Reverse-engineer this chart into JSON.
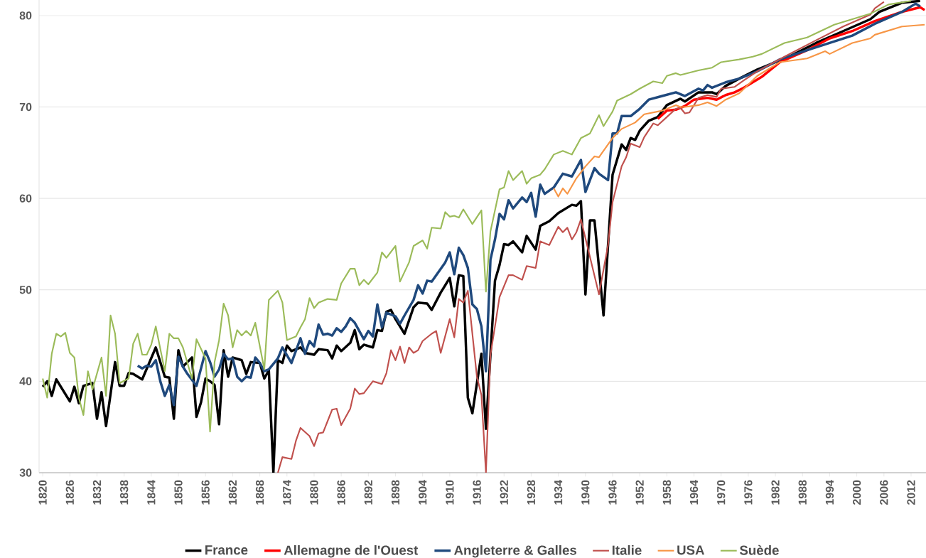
{
  "chart_data": {
    "type": "line",
    "xlim": [
      1819.2,
      2015.3
    ],
    "ylim": [
      30,
      81.7
    ],
    "xticks": [
      1820,
      1826,
      1832,
      1838,
      1844,
      1850,
      1856,
      1862,
      1868,
      1874,
      1880,
      1886,
      1892,
      1898,
      1904,
      1910,
      1916,
      1922,
      1928,
      1934,
      1940,
      1946,
      1952,
      1958,
      1964,
      1970,
      1976,
      1982,
      1988,
      1994,
      2000,
      2006,
      2012
    ],
    "yticks": [
      30,
      40,
      50,
      60,
      70,
      80
    ],
    "grid": "y",
    "legend": "bottom",
    "series": [
      {
        "name": "France",
        "color": "#000000",
        "x": [
          1820,
          1821,
          1822,
          1823,
          1826,
          1827,
          1828,
          1829,
          1831,
          1832,
          1833,
          1834,
          1836,
          1837,
          1838,
          1839,
          1840,
          1842,
          1845,
          1847,
          1848,
          1849,
          1850,
          1851,
          1853,
          1854,
          1855,
          1856,
          1857,
          1858,
          1859,
          1860,
          1861,
          1862,
          1864,
          1865,
          1866,
          1868,
          1869,
          1870,
          1871,
          1872,
          1873,
          1874,
          1875,
          1877,
          1878,
          1880,
          1881,
          1883,
          1884,
          1885,
          1886,
          1888,
          1889,
          1890,
          1891,
          1893,
          1894,
          1895,
          1896,
          1897,
          1898,
          1900,
          1902,
          1903,
          1905,
          1906,
          1908,
          1910,
          1911,
          1912,
          1913,
          1914,
          1915,
          1917,
          1918,
          1920,
          1921,
          1922,
          1923,
          1924,
          1926,
          1927,
          1929,
          1930,
          1932,
          1934,
          1937,
          1938,
          1939,
          1940,
          1941,
          1942,
          1944,
          1946,
          1948,
          1949,
          1950,
          1951,
          1952,
          1954,
          1956,
          1958,
          1961,
          1962,
          1965,
          1968,
          1969,
          1971,
          1974,
          1978,
          1985,
          1991,
          1997,
          2003,
          2005,
          2010,
          2014
        ],
        "values": [
          39.4,
          40.0,
          38.4,
          40.2,
          37.8,
          39.4,
          37.6,
          39.5,
          39.8,
          35.9,
          38.8,
          35.1,
          42.1,
          39.5,
          39.5,
          40.9,
          40.8,
          40.2,
          43.7,
          40.5,
          40.4,
          35.9,
          43.4,
          41.6,
          42.6,
          36.1,
          37.7,
          40.3,
          40.0,
          39.6,
          35.3,
          43.4,
          40.5,
          42.6,
          42.3,
          40.8,
          42.1,
          42.0,
          40.3,
          41.2,
          30.0,
          42.3,
          42.0,
          43.9,
          43.3,
          43.7,
          43.1,
          42.9,
          43.5,
          43.4,
          42.5,
          43.9,
          43.3,
          44.2,
          45.6,
          43.5,
          44.0,
          43.7,
          45.6,
          45.5,
          47.6,
          47.8,
          46.8,
          45.2,
          48.1,
          48.6,
          48.5,
          47.8,
          49.7,
          51.3,
          48.2,
          51.6,
          51.5,
          38.2,
          36.5,
          43.0,
          34.8,
          51.0,
          52.7,
          55.0,
          54.9,
          55.3,
          54.1,
          55.9,
          54.4,
          57.0,
          57.5,
          58.4,
          59.3,
          59.2,
          59.7,
          49.5,
          57.6,
          57.6,
          47.2,
          62.6,
          65.9,
          65.3,
          66.6,
          66.4,
          67.4,
          68.5,
          68.9,
          70.2,
          70.9,
          70.6,
          71.6,
          71.6,
          71.4,
          72.3,
          73.1,
          74.1,
          75.5,
          77.0,
          78.3,
          79.6,
          80.4,
          81.4,
          81.6
        ]
      },
      {
        "name": "Allemagne de l'Ouest",
        "color": "#ff0000",
        "x": [
          1956,
          1958,
          1960,
          1962,
          1964,
          1967,
          1969,
          1971,
          1973,
          1975,
          1977,
          1979,
          1983,
          1989,
          1994,
          1999,
          2004,
          2010,
          2014,
          2015
        ],
        "values": [
          68.7,
          69.6,
          69.7,
          70.1,
          70.8,
          71.0,
          70.8,
          71.3,
          71.6,
          72.1,
          72.7,
          73.3,
          74.9,
          76.2,
          77.5,
          78.3,
          79.4,
          80.4,
          80.9,
          80.6
        ]
      },
      {
        "name": "Angleterre & Galles",
        "color": "#1f497d",
        "x": [
          1841,
          1842,
          1843,
          1844,
          1845,
          1846,
          1847,
          1848,
          1849,
          1850,
          1851,
          1852,
          1854,
          1855,
          1856,
          1857,
          1858,
          1859,
          1860,
          1861,
          1862,
          1863,
          1864,
          1865,
          1866,
          1867,
          1868,
          1869,
          1870,
          1872,
          1873,
          1875,
          1877,
          1878,
          1879,
          1880,
          1881,
          1882,
          1883,
          1884,
          1885,
          1886,
          1887,
          1888,
          1889,
          1891,
          1892,
          1893,
          1894,
          1895,
          1896,
          1898,
          1899,
          1900,
          1902,
          1903,
          1904,
          1905,
          1906,
          1907,
          1908,
          1909,
          1910,
          1911,
          1912,
          1913,
          1914,
          1915,
          1916,
          1917,
          1918,
          1919,
          1920,
          1921,
          1922,
          1923,
          1924,
          1926,
          1927,
          1928,
          1929,
          1930,
          1931,
          1933,
          1935,
          1937,
          1939,
          1940,
          1942,
          1943,
          1945,
          1946,
          1947,
          1948,
          1950,
          1952,
          1954,
          1957,
          1960,
          1962,
          1965,
          1966,
          1967,
          1968,
          1971,
          1974,
          1978,
          1983,
          1989,
          1994,
          1999,
          2004,
          2010,
          2013,
          2014
        ],
        "values": [
          41.7,
          41.4,
          41.7,
          41.6,
          42.3,
          40.0,
          38.4,
          39.6,
          37.4,
          42.7,
          41.6,
          40.8,
          39.5,
          41.4,
          43.3,
          42.1,
          40.5,
          41.3,
          43.0,
          42.4,
          42.5,
          40.5,
          40.0,
          40.5,
          40.4,
          42.6,
          42.0,
          41.1,
          41.3,
          42.5,
          43.7,
          42.0,
          44.7,
          43.0,
          44.4,
          43.8,
          46.2,
          45.1,
          45.2,
          45.0,
          45.8,
          45.4,
          46.0,
          46.9,
          46.4,
          44.6,
          45.5,
          44.9,
          48.4,
          45.9,
          47.5,
          47.1,
          46.3,
          47.2,
          48.9,
          50.5,
          49.6,
          51.0,
          50.9,
          51.6,
          52.3,
          53.0,
          54.1,
          51.7,
          54.6,
          53.8,
          52.4,
          48.4,
          47.9,
          46.0,
          41.1,
          53.3,
          55.5,
          58.3,
          57.7,
          59.8,
          58.9,
          60.1,
          59.6,
          60.6,
          58.0,
          61.5,
          60.5,
          61.2,
          62.7,
          62.4,
          64.2,
          60.7,
          63.3,
          62.7,
          62.0,
          67.1,
          67.1,
          69.0,
          69.0,
          69.8,
          70.8,
          71.2,
          71.6,
          71.2,
          72.0,
          71.8,
          72.4,
          72.1,
          72.7,
          73.1,
          73.9,
          75.2,
          76.2,
          77.0,
          77.8,
          79.1,
          80.4,
          81.3,
          81.0
        ]
      },
      {
        "name": "Italie",
        "color": "#c0504d",
        "x": [
          1872,
          1873,
          1875,
          1876,
          1877,
          1879,
          1880,
          1881,
          1882,
          1884,
          1885,
          1886,
          1888,
          1889,
          1890,
          1891,
          1893,
          1895,
          1896,
          1897,
          1898,
          1899,
          1900,
          1901,
          1902,
          1903,
          1904,
          1906,
          1907,
          1908,
          1910,
          1911,
          1912,
          1913,
          1914,
          1916,
          1917,
          1918,
          1919,
          1920,
          1921,
          1923,
          1924,
          1926,
          1927,
          1929,
          1930,
          1932,
          1934,
          1935,
          1936,
          1937,
          1938,
          1939,
          1943,
          1945,
          1946,
          1948,
          1949,
          1950,
          1952,
          1953,
          1955,
          1956,
          1958,
          1960,
          1961,
          1962,
          1963,
          1965,
          1967,
          1969,
          1970,
          1973,
          1975,
          1978,
          1984,
          1991,
          1997,
          2003,
          2004,
          2006
        ],
        "values": [
          30.0,
          31.7,
          31.5,
          33.5,
          34.9,
          34.0,
          32.9,
          34.3,
          34.4,
          36.9,
          37.0,
          35.2,
          37.0,
          39.2,
          38.6,
          38.7,
          40.0,
          39.7,
          40.9,
          43.4,
          42.3,
          43.8,
          42.0,
          43.7,
          43.1,
          43.4,
          44.4,
          45.2,
          45.5,
          43.1,
          46.8,
          44.8,
          49.0,
          48.6,
          49.9,
          40.5,
          38.5,
          30.0,
          42.9,
          46.0,
          49.2,
          51.6,
          51.6,
          51.1,
          52.6,
          52.4,
          55.3,
          54.9,
          56.9,
          56.3,
          56.8,
          55.5,
          56.3,
          57.7,
          49.5,
          54.9,
          59.6,
          63.5,
          64.5,
          66.0,
          65.6,
          66.7,
          68.2,
          68.0,
          68.9,
          69.8,
          69.9,
          69.3,
          69.4,
          71.0,
          71.3,
          71.1,
          72.0,
          72.2,
          72.9,
          73.9,
          75.5,
          77.3,
          78.8,
          80.1,
          80.8,
          81.5
        ]
      },
      {
        "name": "USA",
        "color": "#f79646",
        "x": [
          1933,
          1934,
          1935,
          1936,
          1938,
          1940,
          1942,
          1943,
          1946,
          1948,
          1951,
          1953,
          1957,
          1960,
          1961,
          1962,
          1965,
          1967,
          1969,
          1971,
          1974,
          1978,
          1983,
          1989,
          1993,
          1994,
          1999,
          2003,
          2004,
          2010,
          2015
        ],
        "values": [
          61.1,
          60.2,
          61.1,
          60.5,
          62.2,
          63.5,
          64.6,
          64.5,
          66.6,
          67.6,
          68.3,
          69.2,
          69.6,
          70.2,
          70.0,
          70.0,
          70.2,
          70.5,
          70.1,
          70.8,
          71.5,
          73.4,
          74.9,
          75.3,
          76.1,
          75.8,
          77.0,
          77.5,
          77.9,
          78.8,
          79.0
        ]
      },
      {
        "name": "Suède",
        "color": "#9bbb59",
        "x": [
          1820,
          1821,
          1822,
          1823,
          1824,
          1825,
          1826,
          1827,
          1828,
          1829,
          1830,
          1831,
          1833,
          1834,
          1835,
          1836,
          1837,
          1839,
          1840,
          1841,
          1842,
          1843,
          1844,
          1845,
          1847,
          1848,
          1849,
          1850,
          1851,
          1853,
          1854,
          1856,
          1857,
          1858,
          1859,
          1860,
          1861,
          1862,
          1863,
          1864,
          1865,
          1866,
          1867,
          1869,
          1870,
          1872,
          1873,
          1874,
          1876,
          1877,
          1878,
          1879,
          1880,
          1881,
          1883,
          1885,
          1886,
          1888,
          1889,
          1890,
          1891,
          1892,
          1894,
          1895,
          1896,
          1898,
          1899,
          1901,
          1902,
          1904,
          1905,
          1906,
          1908,
          1909,
          1910,
          1911,
          1912,
          1913,
          1915,
          1917,
          1918,
          1919,
          1921,
          1922,
          1923,
          1924,
          1926,
          1927,
          1928,
          1930,
          1931,
          1933,
          1935,
          1937,
          1939,
          1941,
          1943,
          1944,
          1946,
          1947,
          1950,
          1952,
          1955,
          1957,
          1958,
          1960,
          1961,
          1965,
          1968,
          1970,
          1974,
          1977,
          1979,
          1984,
          1989,
          1992,
          1995,
          1999,
          2003,
          2007,
          2012
        ],
        "values": [
          40.3,
          38.2,
          43.0,
          45.2,
          44.9,
          45.3,
          43.1,
          42.6,
          38.2,
          36.3,
          41.1,
          39.1,
          42.6,
          38.4,
          47.2,
          45.2,
          39.8,
          40.3,
          44.1,
          45.2,
          42.9,
          42.9,
          44.0,
          46.0,
          41.1,
          45.2,
          44.7,
          44.7,
          43.7,
          40.3,
          44.6,
          42.5,
          34.5,
          42.1,
          44.5,
          48.5,
          47.2,
          43.7,
          45.6,
          45.0,
          45.5,
          45.0,
          46.4,
          41.3,
          48.9,
          49.9,
          48.6,
          44.5,
          44.9,
          45.9,
          46.8,
          49.1,
          48.0,
          48.6,
          49.0,
          48.9,
          50.7,
          52.3,
          52.3,
          50.5,
          51.1,
          50.6,
          51.9,
          54.1,
          53.5,
          54.8,
          50.9,
          53.0,
          54.8,
          55.4,
          54.5,
          56.8,
          56.7,
          58.5,
          58.0,
          58.1,
          57.9,
          58.8,
          57.2,
          58.7,
          49.8,
          56.4,
          61.0,
          61.2,
          63.0,
          62.0,
          63.0,
          61.6,
          62.2,
          62.6,
          63.2,
          64.8,
          65.2,
          64.8,
          66.6,
          67.1,
          69.1,
          67.9,
          69.5,
          70.7,
          71.4,
          72.0,
          72.8,
          72.6,
          73.4,
          73.7,
          73.5,
          74.0,
          74.3,
          74.9,
          75.2,
          75.5,
          75.8,
          77.0,
          77.6,
          78.3,
          79.0,
          79.6,
          80.2,
          81.2,
          81.6
        ]
      }
    ]
  }
}
